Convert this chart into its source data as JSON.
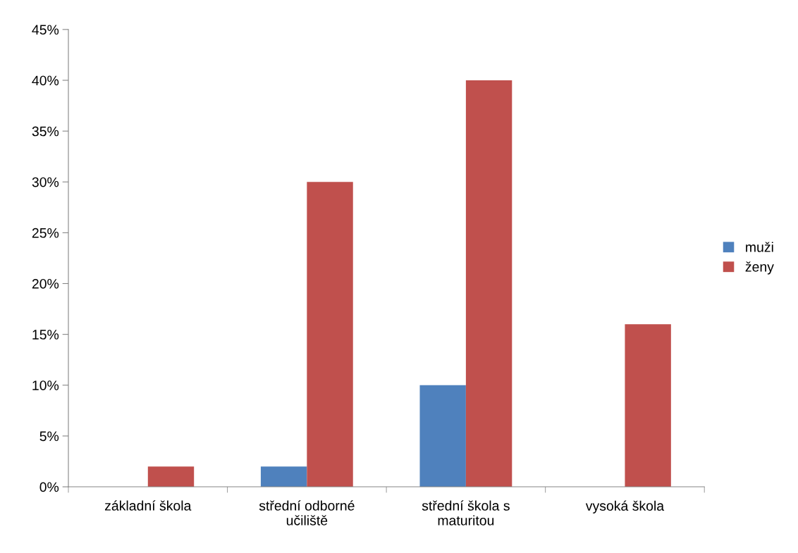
{
  "chart_data": {
    "type": "bar",
    "categories": [
      "základní škola",
      "střední odborné\nučiliště",
      "střední škola s\nmaturitou",
      "vysoká škola"
    ],
    "series": [
      {
        "name": "muži",
        "color": "#4f81bd",
        "values": [
          0,
          2,
          10,
          0
        ]
      },
      {
        "name": "ženy",
        "color": "#c0504d",
        "values": [
          2,
          30,
          40,
          16
        ]
      }
    ],
    "ylim": [
      0,
      45
    ],
    "yticks": [
      {
        "value": 0,
        "label": "0%"
      },
      {
        "value": 5,
        "label": "5%"
      },
      {
        "value": 10,
        "label": "10%"
      },
      {
        "value": 15,
        "label": "15%"
      },
      {
        "value": 20,
        "label": "20%"
      },
      {
        "value": 25,
        "label": "25%"
      },
      {
        "value": 30,
        "label": "30%"
      },
      {
        "value": 35,
        "label": "35%"
      },
      {
        "value": 40,
        "label": "40%"
      },
      {
        "value": 45,
        "label": "45%"
      }
    ],
    "grid": false,
    "legend": "right"
  }
}
